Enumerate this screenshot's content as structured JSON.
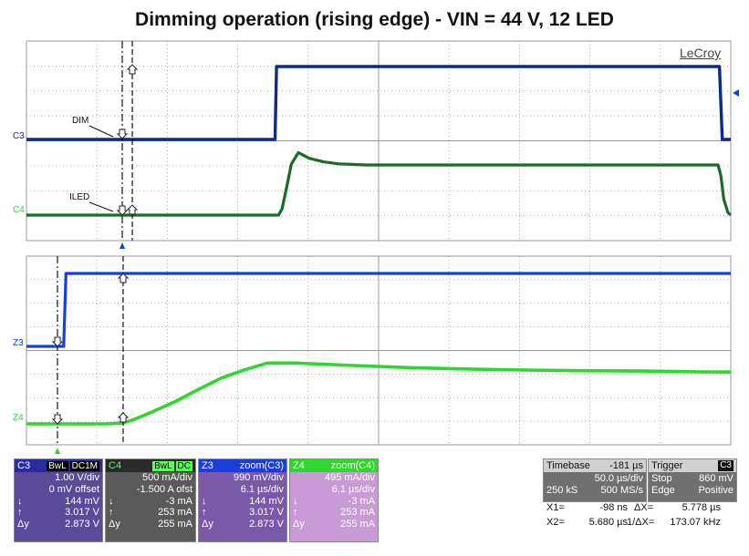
{
  "title": "Dimming operation (rising edge) - VIN = 44 V, 12 LED",
  "brand": "LeCroy",
  "colors": {
    "c3": "#0d2a8a",
    "c4": "#1a6b28",
    "z3": "#1a3de0",
    "z4": "#2ed62e",
    "grid": "#9a9a9a",
    "c3_panel": "#5a4a9a",
    "c4_panel": "#5a5a5a",
    "z3_panel": "#7a5aa8",
    "z4_panel": "#c89ad6"
  },
  "trace_labels": {
    "c3": "C3",
    "c4": "C4",
    "z3": "Z3",
    "z4": "Z4",
    "dim": "DIM",
    "iled": "ILED"
  },
  "chart_data": [
    {
      "type": "line",
      "title": "Dimming operation (rising edge) - VIN = 44 V, 12 LED",
      "panel": "main",
      "timebase_us_per_div": 50.0,
      "x_units": "µs",
      "xlim": [
        -181,
        319
      ],
      "grid": true,
      "series": [
        {
          "name": "DIM",
          "channel": "C3",
          "units": "V",
          "scale_per_div": 1.0,
          "x": [
            -181,
            -4.5,
            -3.5,
            -1,
            1.5,
            311,
            313,
            319
          ],
          "y": [
            0.144,
            0.144,
            3.017,
            3.017,
            3.017,
            3.017,
            0.144,
            0.144
          ]
        },
        {
          "name": "ILED",
          "channel": "C4",
          "units": "mA",
          "scale_per_div": 500,
          "x": [
            -181,
            -2,
            0.5,
            4,
            7,
            12,
            20,
            30,
            40,
            60,
            310,
            312,
            314,
            317,
            319
          ],
          "y": [
            -3,
            -3,
            30,
            150,
            260,
            320,
            290,
            272,
            262,
            256,
            256,
            200,
            80,
            10,
            -3
          ]
        }
      ]
    },
    {
      "type": "line",
      "panel": "zoom",
      "timebase_us_per_div": 6.1,
      "x_units": "µs",
      "xlim": [
        -8.37,
        52.63
      ],
      "grid": true,
      "series": [
        {
          "name": "zoom(C3)",
          "channel": "Z3",
          "units": "V",
          "x": [
            -8.37,
            -5.15,
            -4.95,
            52.63
          ],
          "y": [
            0.144,
            0.144,
            3.017,
            3.017
          ]
        },
        {
          "name": "zoom(C4)",
          "channel": "Z4",
          "units": "mA",
          "x": [
            -8.37,
            -1.5,
            0,
            1,
            2.5,
            4.5,
            6.5,
            8.5,
            10.5,
            12.5,
            15,
            20,
            25,
            30,
            35,
            40,
            45,
            50,
            52.63
          ],
          "y": [
            -3,
            -3,
            1,
            20,
            56,
            108,
            168,
            225,
            266,
            300,
            300,
            288,
            277,
            270,
            265,
            262,
            260,
            256,
            255
          ]
        }
      ]
    }
  ],
  "panels": [
    {
      "id": "C3",
      "header": "C3",
      "badges": [
        "BwL",
        "DC1M"
      ],
      "rows": [
        [
          "",
          "1.00 V/div"
        ],
        [
          "",
          "0 mV offset"
        ],
        [
          "↓",
          "144 mV"
        ],
        [
          "↑",
          "3.017 V"
        ],
        [
          "Δy",
          "2.873 V"
        ]
      ]
    },
    {
      "id": "C4",
      "header": "C4",
      "badges": [
        "BwL",
        "DC"
      ],
      "rows": [
        [
          "",
          "500 mA/div"
        ],
        [
          "",
          "-1.500 A ofst"
        ],
        [
          "↓",
          "-3 mA"
        ],
        [
          "↑",
          "253 mA"
        ],
        [
          "Δy",
          "255 mA"
        ]
      ]
    },
    {
      "id": "Z3",
      "header": "Z3",
      "label": "zoom(C3)",
      "rows": [
        [
          "",
          "990 mV/div"
        ],
        [
          "",
          "6.1 µs/div"
        ],
        [
          "↓",
          "144 mV"
        ],
        [
          "↑",
          "3.017 V"
        ],
        [
          "Δy",
          "2.873 V"
        ]
      ]
    },
    {
      "id": "Z4",
      "header": "Z4",
      "label": "zoom(C4)",
      "rows": [
        [
          "",
          "495 mA/div"
        ],
        [
          "",
          "6.1 µs/div"
        ],
        [
          "↓",
          "-3 mA"
        ],
        [
          "↑",
          "253 mA"
        ],
        [
          "Δy",
          "255 mA"
        ]
      ]
    }
  ],
  "timebase": {
    "label": "Timebase",
    "value": "-181 µs",
    "per_div": "50.0 µs/div",
    "samples": "250 kS",
    "rate": "500 MS/s"
  },
  "trigger": {
    "label": "Trigger",
    "channel": "C3",
    "mode": "Stop",
    "level": "860 mV",
    "type": "Edge",
    "slope": "Positive"
  },
  "measure": {
    "x1_label": "X1=",
    "x1": "-98 ns",
    "dx_label": "ΔX=",
    "dx": "5.778 µs",
    "x2_label": "X2=",
    "x2": "5.680 µs",
    "inv_label": "1/ΔX=",
    "inv": "173.07 kHz"
  }
}
